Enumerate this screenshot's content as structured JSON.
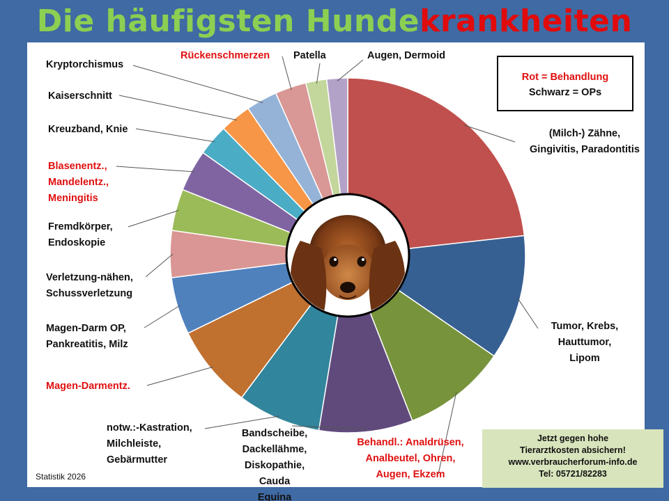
{
  "title": {
    "part1": "Die häufigsten Hunde",
    "part2": "krankheiten"
  },
  "colors": {
    "title_green": "#8ccf52",
    "title_red": "#e10b0b",
    "background": "#3f6aa3",
    "label_red": "#e01010",
    "promo_bg": "#d8e4bc"
  },
  "legend_box": {
    "line1": "Rot = Behandlung",
    "line2": "Schwarz = OPs"
  },
  "statistik": "Statistik 2026",
  "promo": {
    "line1": "Jetzt gegen  hohe",
    "line2": "Tierarztkosten absichern!",
    "line3": "www.verbraucherforum-info.de",
    "line4": "Tel: 05721/82283"
  },
  "center_image": "dachshund-puppy",
  "chart_data": {
    "type": "pie",
    "subtype": "doughnut",
    "title": "Die häufigsten Hundekrankheiten",
    "legend": "in-chart callout labels",
    "slices": [
      {
        "label": "(Milch-) Zähne,\nGingivitis, Paradontitis",
        "value": 24.5,
        "color": "#c0504d",
        "label_color": "black"
      },
      {
        "label": "Tumor, Krebs,\nHauttumor,\nLipom",
        "value": 12.0,
        "color": "#376092",
        "label_color": "black"
      },
      {
        "label": "Behandl.: Analdrüsen,\nAnalbeutel, Ohren,\nAugen, Ekzem",
        "value": 10.0,
        "color": "#77933c",
        "label_color": "red"
      },
      {
        "label": "Bandscheibe,\nDackellähme,\nDiskopathie, Cauda\nEquina",
        "value": 9.0,
        "color": "#604a7b",
        "label_color": "black"
      },
      {
        "label": "notw.:-Kastration,\nMilchleiste,\nGebärmutter",
        "value": 8.0,
        "color": "#31859c",
        "label_color": "black"
      },
      {
        "label": "Magen-Darmentz.",
        "value": 8.0,
        "color": "#c0702f",
        "label_color": "red"
      },
      {
        "label": "Magen-Darm OP,\nPankreatitis, Milz",
        "value": 5.5,
        "color": "#4f81bd",
        "label_color": "black"
      },
      {
        "label": "Verletzung-nähen,\nSchussverletzung",
        "value": 4.5,
        "color": "#da9694",
        "label_color": "black"
      },
      {
        "label": "Fremdkörper,\nEndoskopie",
        "value": 4.0,
        "color": "#9bbb59",
        "label_color": "black"
      },
      {
        "label": "Blasenentz.,\nMandelentz.,\nMeningitis",
        "value": 4.0,
        "color": "#8064a2",
        "label_color": "red"
      },
      {
        "label": "Kreuzband, Knie",
        "value": 3.0,
        "color": "#4bacc6",
        "label_color": "black"
      },
      {
        "label": "Kaiserschnitt",
        "value": 3.0,
        "color": "#f79646",
        "label_color": "black"
      },
      {
        "label": "Kryptorchismus",
        "value": 3.0,
        "color": "#95b3d7",
        "label_color": "black"
      },
      {
        "label": "Rückenschmerzen",
        "value": 3.0,
        "color": "#d99795",
        "label_color": "red"
      },
      {
        "label": "Patella",
        "value": 2.0,
        "color": "#c3d69b",
        "label_color": "black"
      },
      {
        "label": "Augen, Dermoid",
        "value": 2.0,
        "color": "#b3a2c7",
        "label_color": "black"
      }
    ]
  }
}
